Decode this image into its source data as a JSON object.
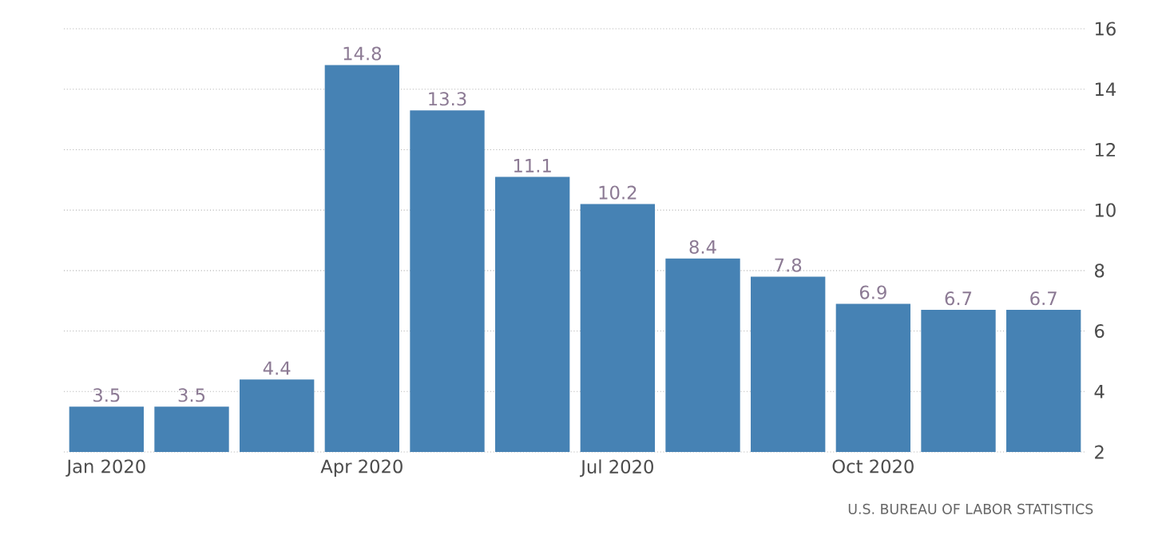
{
  "chart_data": {
    "type": "bar",
    "categories": [
      "Jan 2020",
      null,
      null,
      "Apr 2020",
      null,
      null,
      "Jul 2020",
      null,
      null,
      "Oct 2020",
      null,
      null
    ],
    "values": [
      3.5,
      3.5,
      4.4,
      14.8,
      13.3,
      11.1,
      10.2,
      8.4,
      7.8,
      6.9,
      6.7,
      6.7
    ],
    "color": "#4682b4",
    "ylim": [
      2,
      16
    ],
    "yticks": [
      2,
      4,
      6,
      8,
      10,
      12,
      14,
      16
    ],
    "grid": "y",
    "data_labels": true,
    "annotations": [
      "U.S. BUREAU OF LABOR STATISTICS"
    ]
  }
}
